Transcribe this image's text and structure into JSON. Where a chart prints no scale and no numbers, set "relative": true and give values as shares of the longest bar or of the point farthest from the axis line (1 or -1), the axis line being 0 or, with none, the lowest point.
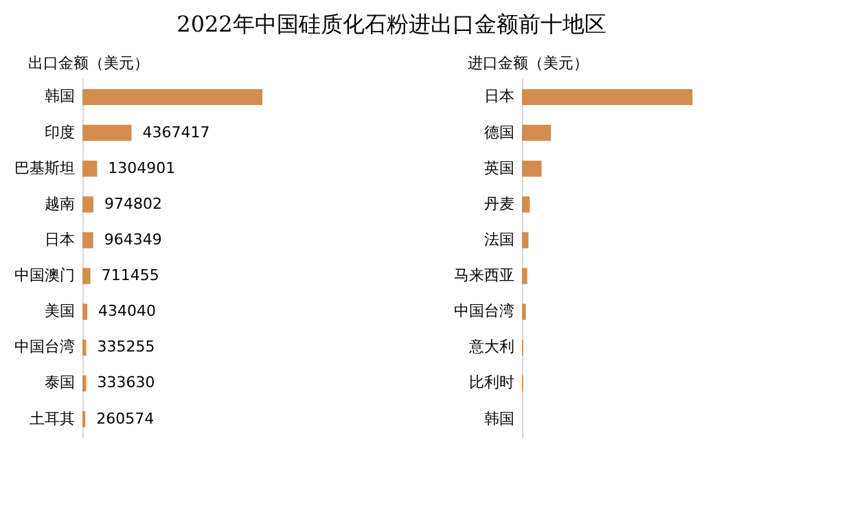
{
  "chart_data": [
    {
      "type": "bar",
      "orientation": "horizontal",
      "title": "2022年中国硅质化石粉进出口金额前十地区",
      "xlabel": "出口金额（美元）",
      "categories": [
        "韩国",
        "印度",
        "巴基斯坦",
        "越南",
        "日本",
        "中国澳门",
        "美国",
        "中国台湾",
        "泰国",
        "土耳其"
      ],
      "values": [
        16000000,
        4367417,
        1304901,
        974802,
        964349,
        711455,
        434040,
        335255,
        333630,
        260574
      ],
      "value_labels": [
        null,
        "4367417",
        "1304901",
        "974802",
        "964349",
        "711455",
        "434040",
        "335255",
        "333630",
        "260574"
      ],
      "color": "#d38d4f",
      "grid": false,
      "tick_labels": "y"
    },
    {
      "type": "bar",
      "orientation": "horizontal",
      "relative": true,
      "xlabel": "进口金额（美元）",
      "categories": [
        "日本",
        "德国",
        "英国",
        "丹麦",
        "法国",
        "马来西亚",
        "中国台湾",
        "意大利",
        "比利时",
        "韩国"
      ],
      "values": [
        1,
        0.17,
        0.115,
        0.046,
        0.038,
        0.031,
        0.023,
        0.008,
        0.007,
        null
      ],
      "color": "#d38d4f",
      "grid": false
    }
  ]
}
